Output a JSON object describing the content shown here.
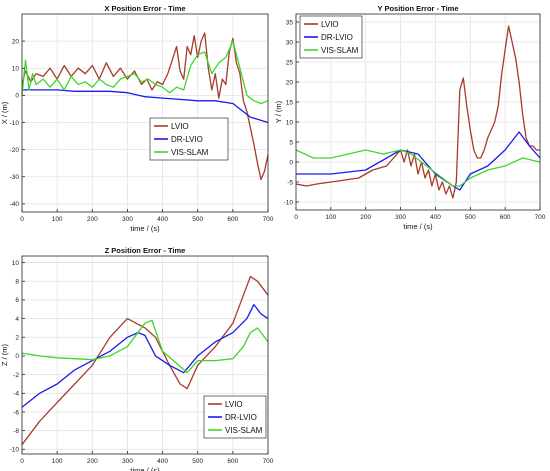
{
  "colors": {
    "lvio": "#a83a2a",
    "dr_lvio": "#1a1aee",
    "vis_slam": "#3fd62a",
    "grid": "#e3e3e3",
    "axis": "#262626"
  },
  "chart_data": [
    {
      "id": "x",
      "type": "line",
      "title": "X Position Error - Time",
      "xlabel": "time / (s)",
      "ylabel": "X / (m)",
      "xlim": [
        0,
        700
      ],
      "ylim": [
        -43,
        30
      ],
      "xticks": [
        0,
        100,
        200,
        300,
        400,
        500,
        600,
        700
      ],
      "yticks": [
        -40,
        -30,
        -20,
        -10,
        0,
        10,
        20
      ],
      "grid": true,
      "legend": "right, lower middle",
      "series": [
        {
          "name": "LVIO",
          "color_key": "lvio",
          "x": [
            0,
            10,
            25,
            40,
            60,
            80,
            100,
            120,
            140,
            160,
            180,
            200,
            220,
            240,
            260,
            280,
            300,
            320,
            340,
            355,
            370,
            385,
            400,
            415,
            425,
            440,
            450,
            460,
            470,
            480,
            490,
            500,
            510,
            520,
            530,
            540,
            550,
            560,
            570,
            580,
            590,
            600,
            610,
            620,
            630,
            640,
            650,
            660,
            670,
            680,
            690,
            700
          ],
          "y": [
            4,
            9,
            5,
            8,
            7,
            10,
            6,
            11,
            7,
            10,
            8,
            11,
            6,
            12,
            7,
            10,
            6,
            9,
            4,
            6,
            2,
            5,
            4,
            8,
            12,
            18,
            9,
            6,
            18,
            15,
            22,
            14,
            20,
            23,
            10,
            2,
            8,
            -1,
            6,
            4,
            16,
            21,
            12,
            8,
            -2,
            -6,
            -12,
            -18,
            -25,
            -31,
            -28,
            -22
          ]
        },
        {
          "name": "DR-LVIO",
          "color_key": "dr_lvio",
          "x": [
            0,
            50,
            100,
            150,
            200,
            250,
            300,
            350,
            400,
            450,
            500,
            550,
            600,
            650,
            700
          ],
          "y": [
            2,
            2,
            2,
            1.5,
            1.5,
            1.5,
            1,
            -0.5,
            -1,
            -1.5,
            -2,
            -2,
            -3,
            -8,
            -10
          ]
        },
        {
          "name": "VIS-SLAM",
          "color_key": "vis_slam",
          "x": [
            0,
            10,
            20,
            30,
            40,
            60,
            80,
            100,
            120,
            140,
            160,
            180,
            200,
            220,
            240,
            260,
            280,
            300,
            320,
            340,
            360,
            380,
            400,
            420,
            440,
            460,
            480,
            500,
            520,
            540,
            560,
            580,
            600,
            620,
            640,
            660,
            680,
            700
          ],
          "y": [
            0,
            13,
            2,
            8,
            4,
            6,
            3,
            6,
            2,
            7,
            4,
            5,
            3,
            6,
            4,
            3,
            6,
            7,
            8,
            5,
            6,
            4,
            3,
            1,
            3,
            2,
            11,
            15,
            16,
            8,
            12,
            14,
            20,
            10,
            0,
            -2,
            -3,
            -2
          ]
        }
      ]
    },
    {
      "id": "y",
      "type": "line",
      "title": "Y Position Error - Time",
      "xlabel": "time / (s)",
      "ylabel": "Y / (m)",
      "xlim": [
        0,
        700
      ],
      "ylim": [
        -12,
        37
      ],
      "xticks": [
        0,
        100,
        200,
        300,
        400,
        500,
        600,
        700
      ],
      "yticks": [
        -10,
        -5,
        0,
        5,
        10,
        15,
        20,
        25,
        30,
        35
      ],
      "grid": true,
      "legend": "top-left",
      "series": [
        {
          "name": "LVIO",
          "color_key": "lvio",
          "x": [
            0,
            30,
            60,
            100,
            140,
            180,
            220,
            260,
            280,
            300,
            310,
            320,
            330,
            340,
            350,
            360,
            370,
            380,
            390,
            400,
            410,
            420,
            430,
            440,
            450,
            460,
            470,
            480,
            490,
            500,
            510,
            520,
            530,
            540,
            550,
            560,
            570,
            580,
            590,
            600,
            610,
            620,
            630,
            640,
            650,
            660,
            670,
            680,
            690,
            700
          ],
          "y": [
            -5.5,
            -6,
            -5.5,
            -5,
            -4.5,
            -4,
            -2,
            -1,
            1,
            3,
            0,
            3,
            -1,
            2,
            -3,
            0,
            -4,
            -2,
            -6,
            -3,
            -7,
            -5,
            -8,
            -6,
            -9,
            -5,
            18,
            21,
            14,
            8,
            3,
            1,
            1,
            3,
            6,
            8,
            10,
            14,
            22,
            28,
            34,
            30,
            26,
            20,
            12,
            6,
            4,
            4,
            3,
            3
          ]
        },
        {
          "name": "DR-LVIO",
          "color_key": "dr_lvio",
          "x": [
            0,
            100,
            200,
            300,
            350,
            400,
            450,
            470,
            500,
            550,
            600,
            640,
            670,
            700
          ],
          "y": [
            -3,
            -3,
            -2,
            3,
            2,
            -3,
            -6,
            -7,
            -3,
            -1,
            3,
            7.5,
            4,
            1
          ]
        },
        {
          "name": "VIS-SLAM",
          "color_key": "vis_slam",
          "x": [
            0,
            50,
            100,
            150,
            200,
            250,
            300,
            330,
            360,
            390,
            420,
            450,
            470,
            500,
            550,
            600,
            650,
            700
          ],
          "y": [
            3,
            1,
            1,
            2,
            3,
            2,
            3,
            2,
            0,
            -2,
            -4,
            -6,
            -6,
            -4,
            -2,
            -1,
            1,
            0
          ]
        }
      ]
    },
    {
      "id": "z",
      "type": "line",
      "title": "Z Position Error - Time",
      "xlabel": "time / (s)",
      "ylabel": "Z / (m)",
      "xlim": [
        0,
        700
      ],
      "ylim": [
        -10.5,
        10.7
      ],
      "xticks": [
        0,
        100,
        200,
        300,
        400,
        500,
        600,
        700
      ],
      "yticks": [
        -10,
        -8,
        -6,
        -4,
        -2,
        0,
        2,
        4,
        6,
        8,
        10
      ],
      "grid": true,
      "legend": "bottom-right",
      "series": [
        {
          "name": "LVIO",
          "color_key": "lvio",
          "x": [
            0,
            50,
            100,
            150,
            200,
            250,
            300,
            350,
            380,
            420,
            450,
            470,
            500,
            550,
            600,
            630,
            650,
            670,
            700
          ],
          "y": [
            -9.5,
            -7,
            -5,
            -3,
            -1,
            2,
            4,
            3,
            2,
            -1,
            -3,
            -3.5,
            -1,
            1,
            3.5,
            6.5,
            8.5,
            8,
            6.5
          ]
        },
        {
          "name": "DR-LVIO",
          "color_key": "dr_lvio",
          "x": [
            0,
            50,
            100,
            150,
            200,
            250,
            300,
            330,
            350,
            380,
            420,
            460,
            500,
            550,
            600,
            640,
            660,
            680,
            700
          ],
          "y": [
            -5.5,
            -4,
            -3,
            -1.5,
            -0.5,
            0.5,
            2,
            2.5,
            2.2,
            0,
            -1,
            -1.8,
            0,
            1.5,
            2.5,
            4,
            5.5,
            4.5,
            4
          ]
        },
        {
          "name": "VIS-SLAM",
          "color_key": "vis_slam",
          "x": [
            0,
            50,
            100,
            150,
            200,
            250,
            300,
            350,
            370,
            400,
            440,
            470,
            500,
            550,
            600,
            630,
            650,
            670,
            700
          ],
          "y": [
            0.3,
            0,
            -0.2,
            -0.3,
            -0.4,
            0,
            1,
            3.5,
            3.8,
            0.5,
            -0.8,
            -1.8,
            -0.5,
            -0.5,
            -0.3,
            1,
            2.5,
            3,
            1.5
          ]
        }
      ]
    }
  ]
}
